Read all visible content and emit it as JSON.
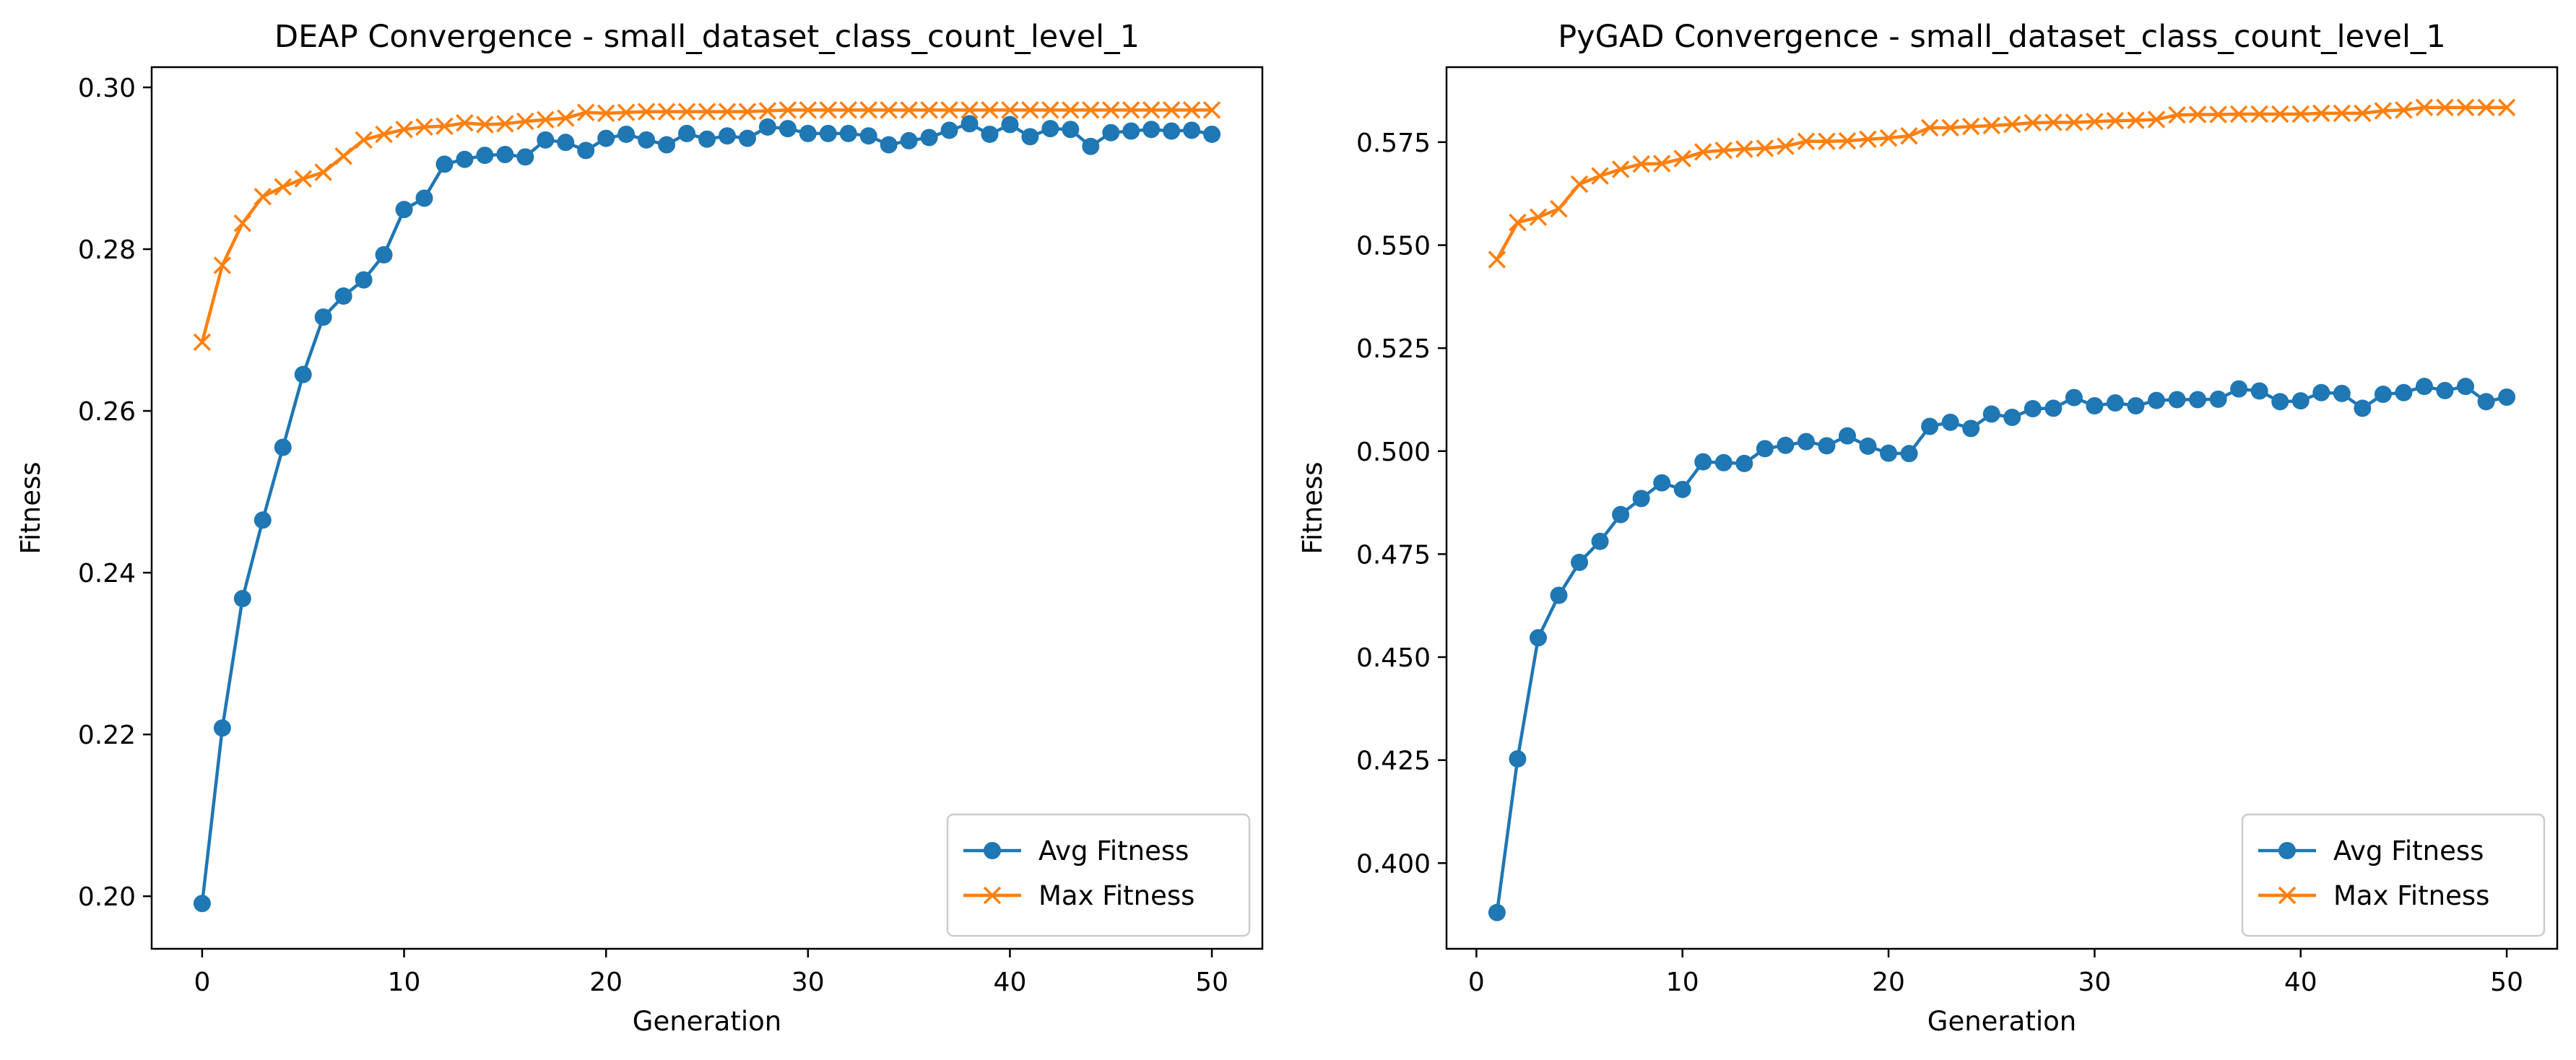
{
  "chart_data": [
    {
      "type": "line",
      "title": "DEAP Convergence - small_dataset_class_count_level_1",
      "xlabel": "Generation",
      "ylabel": "Fitness",
      "xlim": [
        -2.5,
        52.5
      ],
      "ylim": [
        0.1935,
        0.3025
      ],
      "xticks": [
        0,
        10,
        20,
        30,
        40,
        50
      ],
      "yticks": [
        0.2,
        0.22,
        0.24,
        0.26,
        0.28,
        0.3
      ],
      "ytick_labels": [
        "0.20",
        "0.22",
        "0.24",
        "0.26",
        "0.28",
        "0.30"
      ],
      "grid": false,
      "legend": "bottom-right",
      "x": [
        0,
        1,
        2,
        3,
        4,
        5,
        6,
        7,
        8,
        9,
        10,
        11,
        12,
        13,
        14,
        15,
        16,
        17,
        18,
        19,
        20,
        21,
        22,
        23,
        24,
        25,
        26,
        27,
        28,
        29,
        30,
        31,
        32,
        33,
        34,
        35,
        36,
        37,
        38,
        39,
        40,
        41,
        42,
        43,
        44,
        45,
        46,
        47,
        48,
        49,
        50
      ],
      "series": [
        {
          "name": "Avg Fitness",
          "color": "#1f77b4",
          "marker": "circle",
          "values": [
            0.1991,
            0.2208,
            0.2368,
            0.2465,
            0.2555,
            0.2645,
            0.2716,
            0.2742,
            0.2762,
            0.2793,
            0.2849,
            0.2863,
            0.2905,
            0.2911,
            0.2916,
            0.2917,
            0.2914,
            0.2935,
            0.2932,
            0.2922,
            0.2937,
            0.2942,
            0.2935,
            0.2929,
            0.2943,
            0.2936,
            0.294,
            0.2937,
            0.2951,
            0.2949,
            0.2943,
            0.2943,
            0.2943,
            0.294,
            0.2929,
            0.2934,
            0.2938,
            0.2947,
            0.2955,
            0.2942,
            0.2954,
            0.2939,
            0.2949,
            0.2948,
            0.2927,
            0.2944,
            0.2946,
            0.2948,
            0.2946,
            0.2947,
            0.2942
          ]
        },
        {
          "name": "Max Fitness",
          "color": "#ff7f0e",
          "marker": "x",
          "values": [
            0.2685,
            0.278,
            0.2832,
            0.2865,
            0.2877,
            0.2887,
            0.2895,
            0.2915,
            0.2935,
            0.2942,
            0.2948,
            0.2951,
            0.2952,
            0.2956,
            0.2954,
            0.2955,
            0.2958,
            0.296,
            0.2962,
            0.2969,
            0.2968,
            0.2969,
            0.297,
            0.297,
            0.297,
            0.297,
            0.297,
            0.297,
            0.2971,
            0.2972,
            0.2972,
            0.2972,
            0.2972,
            0.2972,
            0.2972,
            0.2972,
            0.2972,
            0.2972,
            0.2972,
            0.2972,
            0.2972,
            0.2972,
            0.2972,
            0.2972,
            0.2972,
            0.2972,
            0.2972,
            0.2972,
            0.2972,
            0.2972,
            0.2972
          ]
        }
      ]
    },
    {
      "type": "line",
      "title": "PyGAD Convergence - small_dataset_class_count_level_1",
      "xlabel": "Generation",
      "ylabel": "Fitness",
      "xlim": [
        -1.45,
        52.45
      ],
      "ylim": [
        0.3792,
        0.5932
      ],
      "xticks": [
        0,
        10,
        20,
        30,
        40,
        50
      ],
      "yticks": [
        0.4,
        0.425,
        0.45,
        0.475,
        0.5,
        0.525,
        0.55,
        0.575
      ],
      "ytick_labels": [
        "0.400",
        "0.425",
        "0.450",
        "0.475",
        "0.500",
        "0.525",
        "0.550",
        "0.575"
      ],
      "grid": false,
      "legend": "bottom-right",
      "x": [
        1,
        2,
        3,
        4,
        5,
        6,
        7,
        8,
        9,
        10,
        11,
        12,
        13,
        14,
        15,
        16,
        17,
        18,
        19,
        20,
        21,
        22,
        23,
        24,
        25,
        26,
        27,
        28,
        29,
        30,
        31,
        32,
        33,
        34,
        35,
        36,
        37,
        38,
        39,
        40,
        41,
        42,
        43,
        44,
        45,
        46,
        47,
        48,
        49,
        50
      ],
      "series": [
        {
          "name": "Avg Fitness",
          "color": "#1f77b4",
          "marker": "circle",
          "values": [
            0.388,
            0.4253,
            0.4547,
            0.465,
            0.473,
            0.4781,
            0.4846,
            0.4885,
            0.4923,
            0.4907,
            0.4974,
            0.4972,
            0.497,
            0.5006,
            0.5014,
            0.5023,
            0.5013,
            0.5037,
            0.5012,
            0.4995,
            0.4994,
            0.506,
            0.507,
            0.5055,
            0.509,
            0.5082,
            0.5103,
            0.5104,
            0.513,
            0.511,
            0.5117,
            0.511,
            0.5123,
            0.5125,
            0.5125,
            0.5126,
            0.5151,
            0.5146,
            0.512,
            0.5122,
            0.5142,
            0.514,
            0.5104,
            0.5138,
            0.5142,
            0.5157,
            0.5147,
            0.5157,
            0.512,
            0.5131
          ]
        },
        {
          "name": "Max Fitness",
          "color": "#ff7f0e",
          "marker": "x",
          "values": [
            0.5465,
            0.5555,
            0.5568,
            0.5588,
            0.5648,
            0.5668,
            0.5684,
            0.5697,
            0.5698,
            0.571,
            0.5726,
            0.573,
            0.5733,
            0.5735,
            0.574,
            0.5752,
            0.5752,
            0.5753,
            0.5757,
            0.576,
            0.5765,
            0.5785,
            0.5785,
            0.5788,
            0.579,
            0.5793,
            0.5797,
            0.5798,
            0.5798,
            0.58,
            0.5802,
            0.5803,
            0.5805,
            0.5816,
            0.5817,
            0.5817,
            0.5818,
            0.5818,
            0.5818,
            0.5818,
            0.582,
            0.582,
            0.582,
            0.5826,
            0.5828,
            0.5834,
            0.5834,
            0.5834,
            0.5834,
            0.5834
          ]
        }
      ]
    }
  ]
}
